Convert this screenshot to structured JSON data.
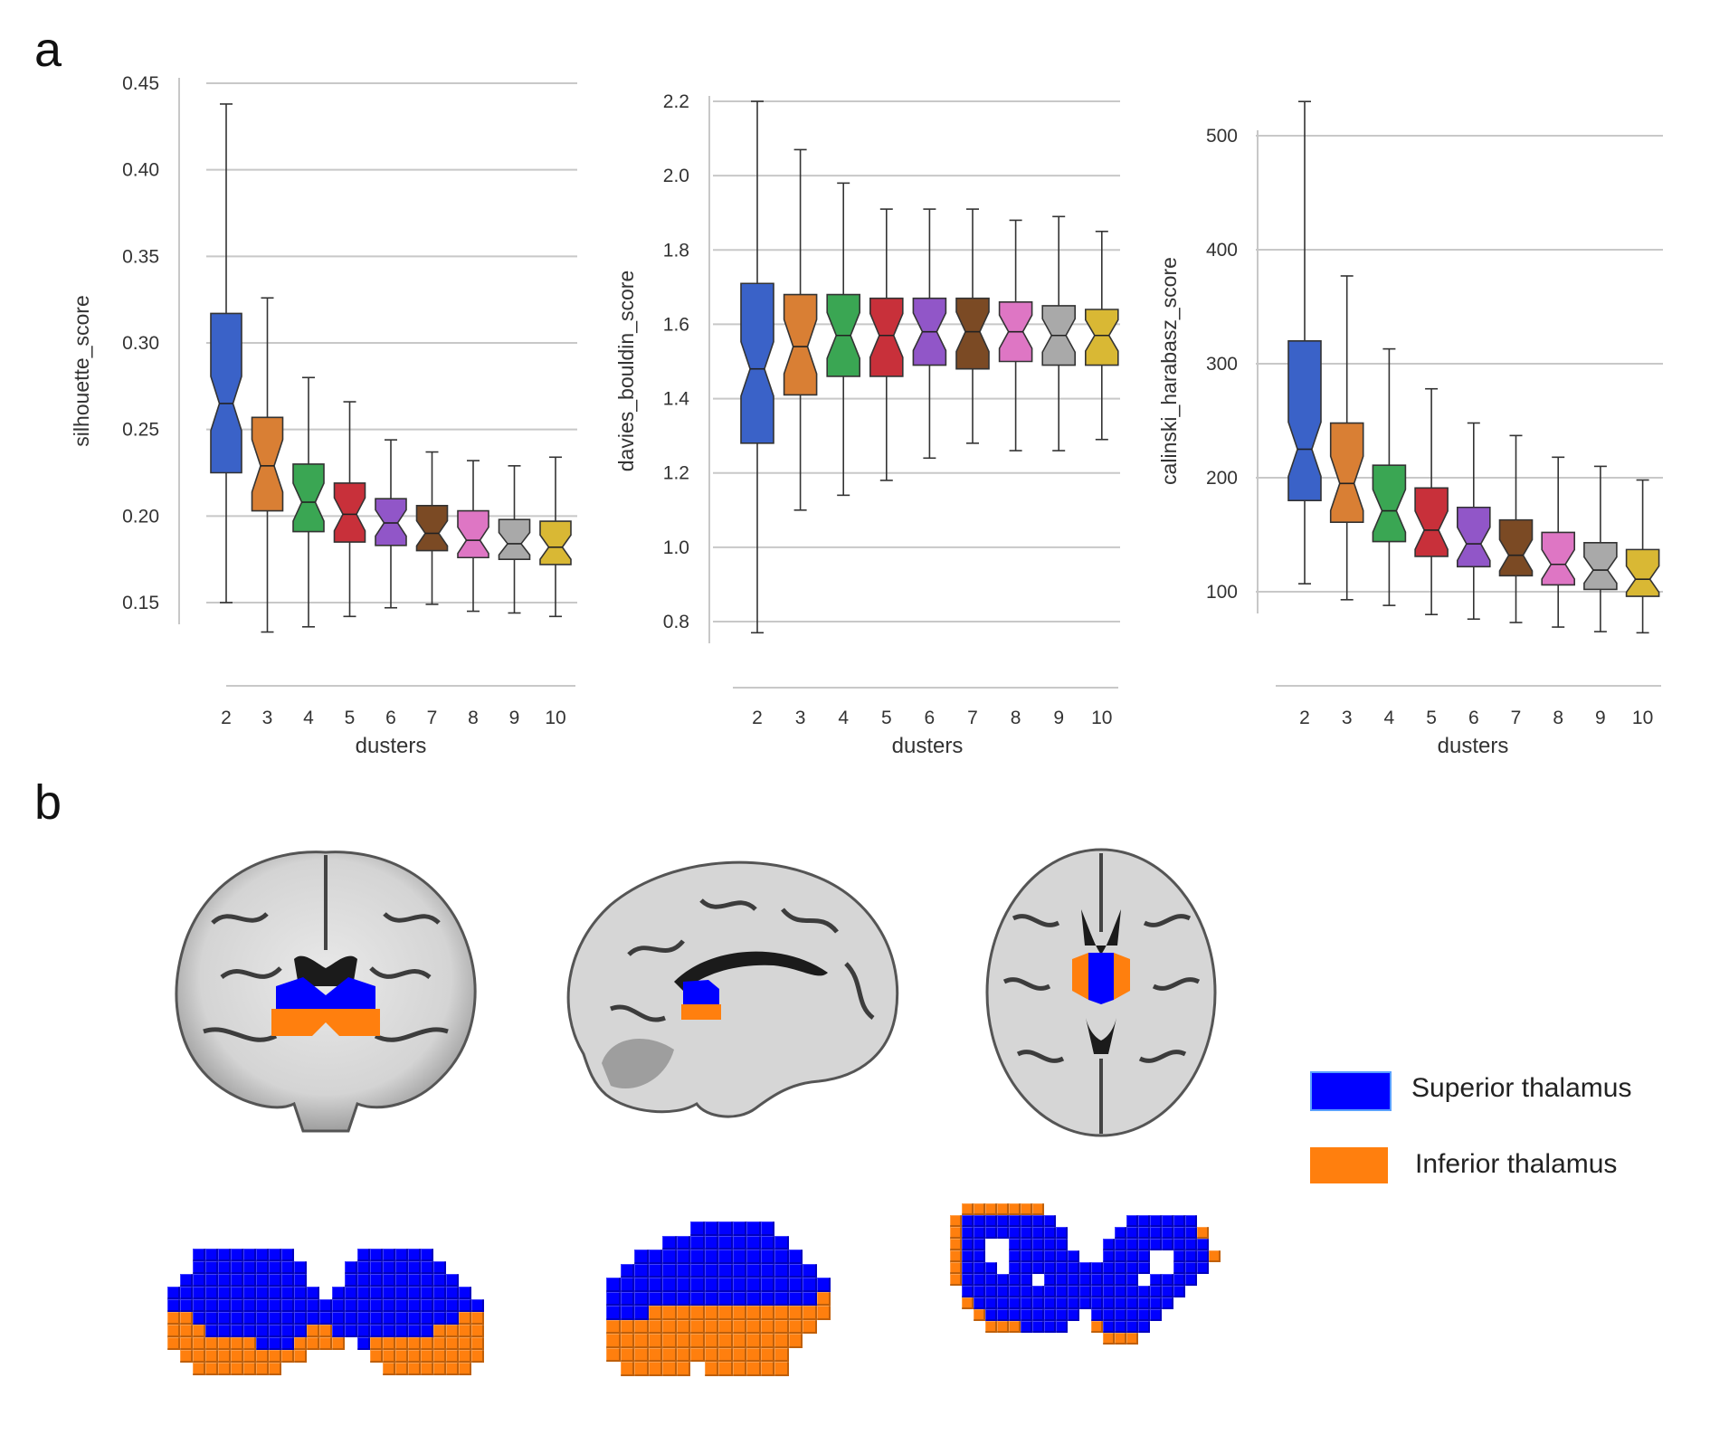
{
  "panel_a_label": "a",
  "panel_b_label": "b",
  "colors": {
    "box_colors": [
      "#3a62c8",
      "#d97f34",
      "#3aa653",
      "#c8303a",
      "#9156c8",
      "#7b4a24",
      "#de76c4",
      "#a9a9a9",
      "#d9b834"
    ],
    "superior": "#0000ff",
    "inferior": "#ff7f0e",
    "grid": "#c8c8c8",
    "whisker": "#333333"
  },
  "chart_data": [
    {
      "type": "box",
      "notched": true,
      "title": "",
      "xlabel": "dusters",
      "ylabel": "silhouette_score",
      "categories": [
        "2",
        "3",
        "4",
        "5",
        "6",
        "7",
        "8",
        "9",
        "10"
      ],
      "ylim": [
        0.15,
        0.45
      ],
      "yticks": [
        "0.15",
        "0.20",
        "0.25",
        "0.30",
        "0.35",
        "0.40",
        "0.45"
      ],
      "boxes": [
        {
          "min": 0.15,
          "q1": 0.225,
          "median": 0.265,
          "q3": 0.317,
          "max": 0.438
        },
        {
          "min": 0.133,
          "q1": 0.203,
          "median": 0.229,
          "q3": 0.257,
          "max": 0.326
        },
        {
          "min": 0.136,
          "q1": 0.191,
          "median": 0.208,
          "q3": 0.23,
          "max": 0.28
        },
        {
          "min": 0.142,
          "q1": 0.185,
          "median": 0.201,
          "q3": 0.219,
          "max": 0.266
        },
        {
          "min": 0.147,
          "q1": 0.183,
          "median": 0.196,
          "q3": 0.21,
          "max": 0.244
        },
        {
          "min": 0.149,
          "q1": 0.18,
          "median": 0.19,
          "q3": 0.206,
          "max": 0.237
        },
        {
          "min": 0.145,
          "q1": 0.176,
          "median": 0.186,
          "q3": 0.203,
          "max": 0.232
        },
        {
          "min": 0.144,
          "q1": 0.175,
          "median": 0.184,
          "q3": 0.198,
          "max": 0.229
        },
        {
          "min": 0.142,
          "q1": 0.172,
          "median": 0.182,
          "q3": 0.197,
          "max": 0.234
        }
      ]
    },
    {
      "type": "box",
      "notched": true,
      "title": "",
      "xlabel": "dusters",
      "ylabel": "davies_bouldin_score",
      "categories": [
        "2",
        "3",
        "4",
        "5",
        "6",
        "7",
        "8",
        "9",
        "10"
      ],
      "ylim": [
        0.8,
        2.2
      ],
      "yticks": [
        "0.8",
        "1.0",
        "1.2",
        "1.4",
        "1.6",
        "1.8",
        "2.0",
        "2.2"
      ],
      "boxes": [
        {
          "min": 0.77,
          "q1": 1.28,
          "median": 1.48,
          "q3": 1.71,
          "max": 2.2
        },
        {
          "min": 1.1,
          "q1": 1.41,
          "median": 1.54,
          "q3": 1.68,
          "max": 2.07
        },
        {
          "min": 1.14,
          "q1": 1.46,
          "median": 1.57,
          "q3": 1.68,
          "max": 1.98
        },
        {
          "min": 1.18,
          "q1": 1.46,
          "median": 1.57,
          "q3": 1.67,
          "max": 1.91
        },
        {
          "min": 1.24,
          "q1": 1.49,
          "median": 1.58,
          "q3": 1.67,
          "max": 1.91
        },
        {
          "min": 1.28,
          "q1": 1.48,
          "median": 1.58,
          "q3": 1.67,
          "max": 1.91
        },
        {
          "min": 1.26,
          "q1": 1.5,
          "median": 1.58,
          "q3": 1.66,
          "max": 1.88
        },
        {
          "min": 1.26,
          "q1": 1.49,
          "median": 1.57,
          "q3": 1.65,
          "max": 1.89
        },
        {
          "min": 1.29,
          "q1": 1.49,
          "median": 1.57,
          "q3": 1.64,
          "max": 1.85
        }
      ]
    },
    {
      "type": "box",
      "notched": true,
      "title": "",
      "xlabel": "dusters",
      "ylabel": "calinski_harabasz_score",
      "categories": [
        "2",
        "3",
        "4",
        "5",
        "6",
        "7",
        "8",
        "9",
        "10"
      ],
      "ylim": [
        100,
        500
      ],
      "yticks": [
        "100",
        "200",
        "300",
        "400",
        "500"
      ],
      "boxes": [
        {
          "min": 107,
          "q1": 180,
          "median": 225,
          "q3": 320,
          "max": 530
        },
        {
          "min": 93,
          "q1": 161,
          "median": 195,
          "q3": 248,
          "max": 377
        },
        {
          "min": 88,
          "q1": 144,
          "median": 171,
          "q3": 211,
          "max": 313
        },
        {
          "min": 80,
          "q1": 131,
          "median": 154,
          "q3": 191,
          "max": 278
        },
        {
          "min": 76,
          "q1": 122,
          "median": 142,
          "q3": 174,
          "max": 248
        },
        {
          "min": 73,
          "q1": 114,
          "median": 132,
          "q3": 163,
          "max": 237
        },
        {
          "min": 69,
          "q1": 106,
          "median": 124,
          "q3": 152,
          "max": 218
        },
        {
          "min": 65,
          "q1": 102,
          "median": 119,
          "q3": 143,
          "max": 210
        },
        {
          "min": 64,
          "q1": 96,
          "median": 111,
          "q3": 137,
          "max": 198
        }
      ]
    }
  ],
  "legend": [
    {
      "label": "Superior thalamus",
      "color": "#0000ff"
    },
    {
      "label": "Inferior thalamus",
      "color": "#ff7f0e"
    }
  ],
  "brain_views": [
    "coronal-slice",
    "sagittal-slice",
    "axial-slice"
  ],
  "voxel_views": [
    "coronal-render",
    "sagittal-render",
    "axial-render"
  ]
}
